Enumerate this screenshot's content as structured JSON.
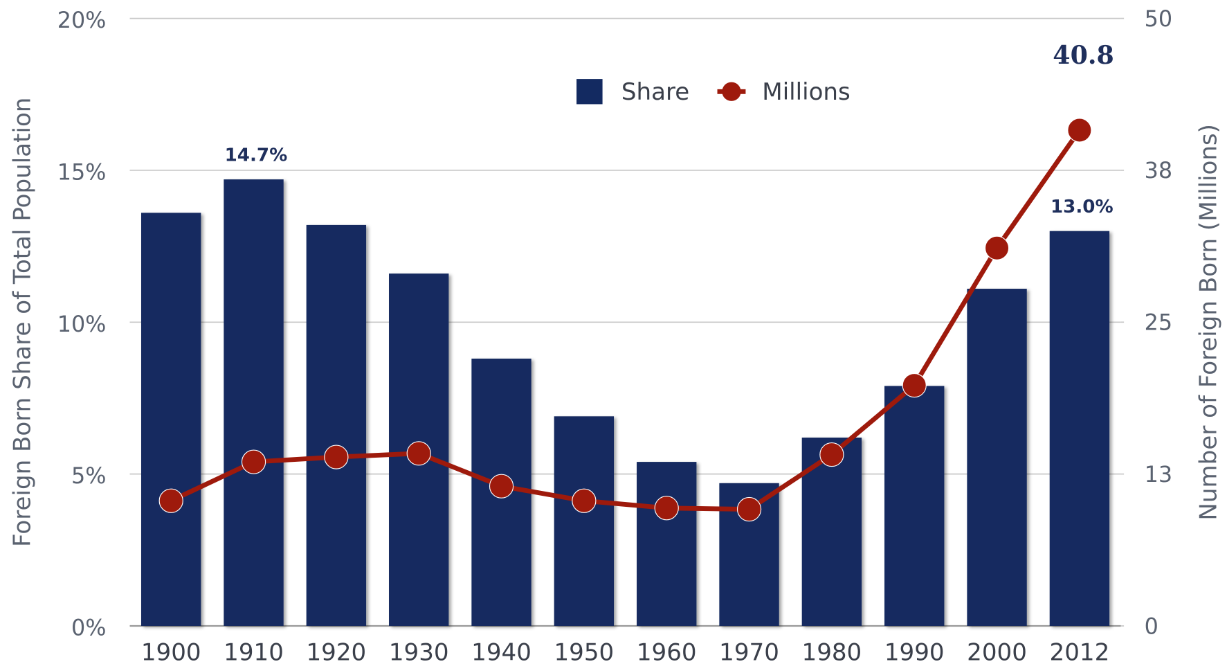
{
  "chart_data": {
    "type": "bar",
    "categories": [
      "1900",
      "1910",
      "1920",
      "1930",
      "1940",
      "1950",
      "1960",
      "1970",
      "1980",
      "1990",
      "2000",
      "2012"
    ],
    "series": [
      {
        "name": "Share",
        "type": "bar",
        "color": "#132a61",
        "values": [
          13.6,
          14.7,
          13.2,
          11.6,
          8.8,
          6.9,
          5.4,
          4.7,
          6.2,
          7.9,
          11.1,
          13.0
        ],
        "value_labels": [
          null,
          "14.7%",
          null,
          null,
          null,
          null,
          null,
          null,
          null,
          null,
          null,
          "13.0%"
        ]
      },
      {
        "name": "Millions",
        "type": "line",
        "axis": "y2",
        "color": "#9e1a0c",
        "values": [
          10.3,
          13.5,
          13.9,
          14.2,
          11.5,
          10.3,
          9.7,
          9.6,
          14.1,
          19.8,
          31.1,
          40.8
        ],
        "value_labels": [
          null,
          null,
          null,
          null,
          null,
          null,
          null,
          null,
          null,
          null,
          null,
          "40.8"
        ]
      }
    ],
    "ylabel": "Foreign Born Share of Total Population",
    "y2label": "Number of Foreign Born (Millions)",
    "ylim": [
      0,
      20
    ],
    "yticks": [
      {
        "value": 0,
        "label": "0%"
      },
      {
        "value": 5,
        "label": "5%"
      },
      {
        "value": 10,
        "label": "10%"
      },
      {
        "value": 15,
        "label": "15%"
      },
      {
        "value": 20,
        "label": "20%"
      }
    ],
    "y2lim": [
      0,
      50
    ],
    "y2ticks": [
      0,
      {
        "value": 12.5,
        "label": "13"
      },
      25,
      {
        "value": 37.5,
        "label": "38"
      },
      50
    ],
    "grid": true,
    "legend": "top"
  }
}
